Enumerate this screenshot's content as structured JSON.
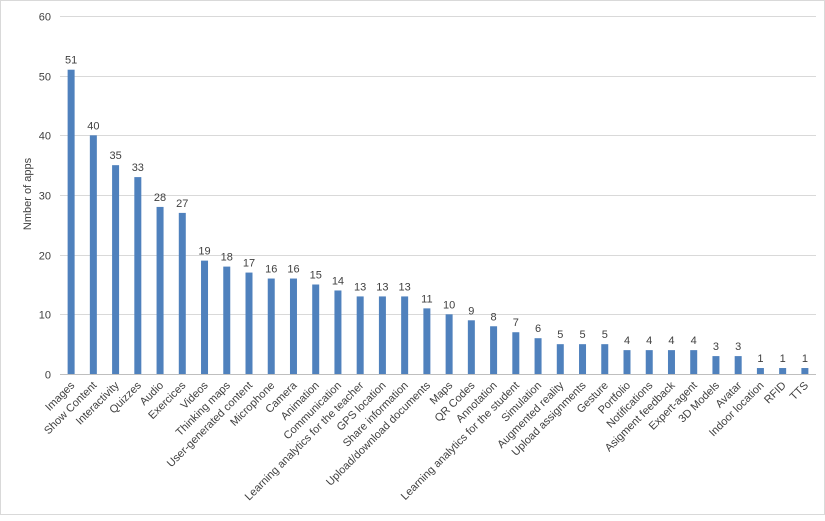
{
  "chart_data": {
    "type": "bar",
    "title": "",
    "xlabel": "",
    "ylabel": "Nmber of apps",
    "ylim": [
      0,
      60
    ],
    "yticks": [
      0,
      10,
      20,
      30,
      40,
      50,
      60
    ],
    "grid": true,
    "legend": "none",
    "bar_color": "#4f81bd",
    "categories": [
      "Images",
      "Show Content",
      "Interactivity",
      "Quizzes",
      "Audio",
      "Exercices",
      "Videos",
      "Thinking maps",
      "User-generated content",
      "Microphone",
      "Camera",
      "Animation",
      "Communication",
      "Learning analytics for the teacher",
      "GPS location",
      "Share information",
      "Upload/download documents",
      "Maps",
      "QR Codes",
      "Annotation",
      "Learning analytics for the student",
      "Simulation",
      "Augmented reality",
      "Upload assignments",
      "Gesture",
      "Portfolio",
      "Notifications",
      "Asigment feedback",
      "Expert-agent",
      "3D Models",
      "Avatar",
      "Indoor location",
      "RFID",
      "TTS"
    ],
    "values": [
      51,
      40,
      35,
      33,
      28,
      27,
      19,
      18,
      17,
      16,
      16,
      15,
      14,
      13,
      13,
      13,
      11,
      10,
      9,
      8,
      7,
      6,
      5,
      5,
      5,
      4,
      4,
      4,
      4,
      3,
      3,
      1,
      1,
      1
    ]
  }
}
